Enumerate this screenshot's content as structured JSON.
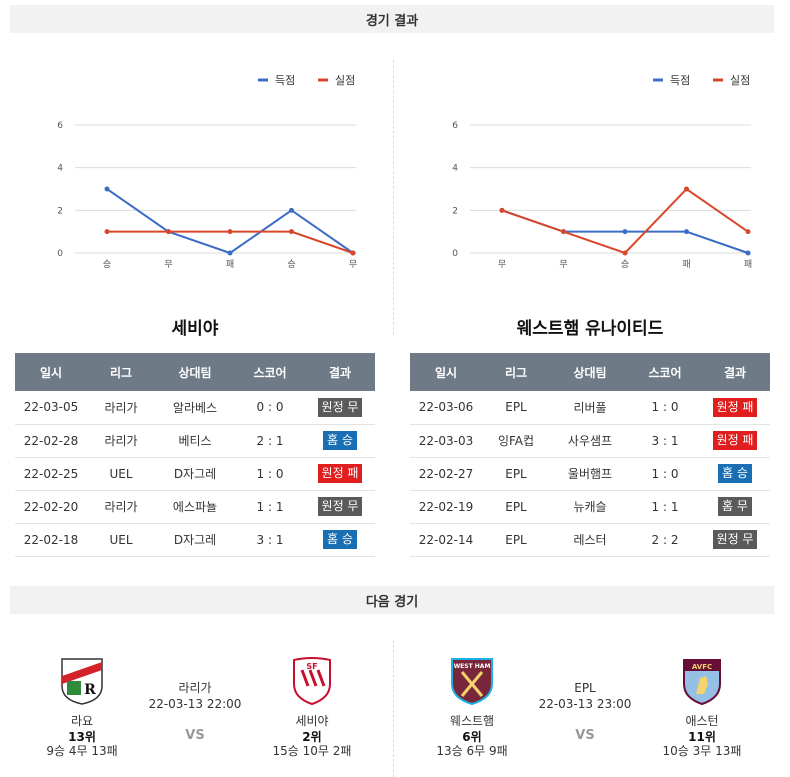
{
  "sections": {
    "results_title": "경기 결과",
    "next_title": "다음 경기"
  },
  "legend": {
    "scored": "득점",
    "conceded": "실점"
  },
  "colors": {
    "scored": "#3b6cc6",
    "conceded": "#d9472b",
    "loss": "#e01e1e",
    "draw": "#5a5a5a",
    "win": "#1a6fb4",
    "header": "#6e7b87"
  },
  "chart_data": [
    {
      "type": "line",
      "categories": [
        "승",
        "무",
        "패",
        "승",
        "무"
      ],
      "ylim": [
        0,
        6
      ],
      "yticks": [
        0,
        2,
        4,
        6
      ],
      "grid": true,
      "legend_position": "top-right",
      "series": [
        {
          "name": "득점",
          "values": [
            3,
            1,
            0,
            2,
            0
          ]
        },
        {
          "name": "실점",
          "values": [
            1,
            1,
            1,
            1,
            0
          ]
        }
      ]
    },
    {
      "type": "line",
      "categories": [
        "무",
        "무",
        "승",
        "패",
        "패"
      ],
      "ylim": [
        0,
        6
      ],
      "yticks": [
        0,
        2,
        4,
        6
      ],
      "grid": true,
      "legend_position": "top-right",
      "series": [
        {
          "name": "득점",
          "values": [
            2,
            1,
            1,
            1,
            0
          ]
        },
        {
          "name": "실점",
          "values": [
            2,
            1,
            0,
            3,
            1
          ]
        }
      ]
    }
  ],
  "tables": {
    "headers": [
      "일시",
      "리그",
      "상대팀",
      "스코어",
      "결과"
    ],
    "left": {
      "team": "세비야",
      "rows": [
        {
          "date": "22-03-05",
          "league": "라리가",
          "opponent": "알라베스",
          "score": "0 : 0",
          "result": "원정 무",
          "type": "draw"
        },
        {
          "date": "22-02-28",
          "league": "라리가",
          "opponent": "베티스",
          "score": "2 : 1",
          "result": "홈 승",
          "type": "win"
        },
        {
          "date": "22-02-25",
          "league": "UEL",
          "opponent": "D자그레",
          "score": "1 : 0",
          "result": "원정 패",
          "type": "loss"
        },
        {
          "date": "22-02-20",
          "league": "라리가",
          "opponent": "에스파뇰",
          "score": "1 : 1",
          "result": "원정 무",
          "type": "draw"
        },
        {
          "date": "22-02-18",
          "league": "UEL",
          "opponent": "D자그레",
          "score": "3 : 1",
          "result": "홈 승",
          "type": "win"
        }
      ]
    },
    "right": {
      "team": "웨스트햄 유나이티드",
      "rows": [
        {
          "date": "22-03-06",
          "league": "EPL",
          "opponent": "리버풀",
          "score": "1 : 0",
          "result": "원정 패",
          "type": "loss"
        },
        {
          "date": "22-03-03",
          "league": "잉FA컵",
          "opponent": "사우샘프",
          "score": "3 : 1",
          "result": "원정 패",
          "type": "loss"
        },
        {
          "date": "22-02-27",
          "league": "EPL",
          "opponent": "울버햄프",
          "score": "1 : 0",
          "result": "홈 승",
          "type": "win"
        },
        {
          "date": "22-02-19",
          "league": "EPL",
          "opponent": "뉴캐슬",
          "score": "1 : 1",
          "result": "홈 무",
          "type": "draw"
        },
        {
          "date": "22-02-14",
          "league": "EPL",
          "opponent": "레스터",
          "score": "2 : 2",
          "result": "원정 무",
          "type": "draw"
        }
      ]
    }
  },
  "matches": [
    {
      "league": "라리가",
      "datetime": "22-03-13 22:00",
      "vs": "VS",
      "home": {
        "name": "라요",
        "rank": "13위",
        "record": "9승 4무 13패",
        "logo": "rayo-vallecano-crest",
        "logo_text": "R"
      },
      "away": {
        "name": "세비야",
        "rank": "2위",
        "record": "15승 10무 2패",
        "logo": "sevilla-crest",
        "logo_text": "SF"
      }
    },
    {
      "league": "EPL",
      "datetime": "22-03-13 23:00",
      "vs": "VS",
      "home": {
        "name": "웨스트햄",
        "rank": "6위",
        "record": "13승 6무 9패",
        "logo": "west-ham-crest",
        "logo_text": "WEST HAM"
      },
      "away": {
        "name": "애스턴",
        "rank": "11위",
        "record": "10승 3무 13패",
        "logo": "aston-villa-crest",
        "logo_text": "AVFC"
      }
    }
  ]
}
